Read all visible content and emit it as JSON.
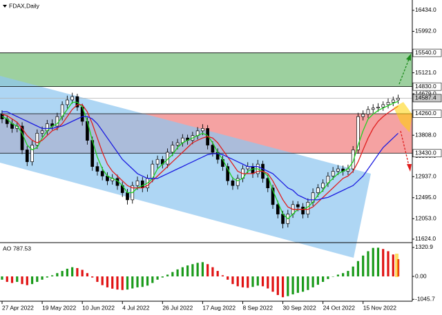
{
  "chart_data": [
    {
      "type": "candlestick",
      "title": "FDAX,Daily",
      "categories": [
        "27 Apr 2022",
        null,
        null,
        null,
        null,
        null,
        null,
        null,
        "19 May 2022",
        null,
        null,
        null,
        null,
        null,
        null,
        null,
        "10 Jun 2022",
        null,
        null,
        null,
        null,
        null,
        null,
        null,
        "4 Jul 2022",
        null,
        null,
        null,
        null,
        null,
        null,
        null,
        "26 Jul 2022",
        null,
        null,
        null,
        null,
        null,
        null,
        null,
        "17 Aug 2022",
        null,
        null,
        null,
        null,
        null,
        null,
        null,
        "8 Sep 2022",
        null,
        null,
        null,
        null,
        null,
        null,
        null,
        "30 Sep 2022",
        null,
        null,
        null,
        null,
        null,
        null,
        null,
        "24 Oct 2022",
        null,
        null,
        null,
        null,
        null,
        null,
        null,
        "15 Nov 2022",
        null,
        null,
        null,
        null,
        null,
        null,
        null
      ],
      "open": [
        14250,
        14150,
        14050,
        13950,
        14000,
        13500,
        13250,
        13600,
        13850,
        13900,
        14050,
        14000,
        14200,
        14450,
        14550,
        14620,
        14400,
        14100,
        13700,
        13150,
        13050,
        12950,
        12850,
        12900,
        12750,
        12600,
        12450,
        12750,
        12850,
        12700,
        12900,
        13200,
        13300,
        13200,
        13450,
        13600,
        13650,
        13750,
        13700,
        13800,
        13900,
        13950,
        13600,
        13450,
        13300,
        13150,
        12850,
        12750,
        12900,
        13100,
        13150,
        13000,
        13200,
        12900,
        12700,
        12350,
        12150,
        11950,
        12150,
        12350,
        12300,
        12150,
        12400,
        12600,
        12700,
        12800,
        12950,
        13050,
        13100,
        13050,
        13100,
        13500,
        14200,
        14250,
        14350,
        14380,
        14400,
        14450,
        14500,
        14550
      ],
      "high": [
        14330,
        14230,
        14140,
        14090,
        14080,
        13580,
        13690,
        13930,
        13990,
        14130,
        14140,
        14280,
        14520,
        14640,
        14700,
        14680,
        14470,
        14180,
        13780,
        13240,
        13140,
        13030,
        12990,
        12980,
        12830,
        12680,
        12830,
        12940,
        12930,
        12980,
        13280,
        13380,
        13370,
        13530,
        13680,
        13730,
        13830,
        13820,
        13880,
        13980,
        14040,
        14020,
        13680,
        13530,
        13380,
        13220,
        12930,
        12980,
        13180,
        13240,
        13220,
        13290,
        13270,
        12980,
        12770,
        12430,
        12220,
        12240,
        12430,
        12420,
        12380,
        12480,
        12690,
        12780,
        12880,
        13030,
        13140,
        13180,
        13170,
        13190,
        13580,
        14280,
        14330,
        14420,
        14460,
        14480,
        14520,
        14580,
        14620,
        14660
      ],
      "low": [
        14060,
        13970,
        13860,
        13870,
        13410,
        13160,
        13170,
        13520,
        13770,
        13820,
        13920,
        13910,
        14120,
        14370,
        14470,
        14320,
        14010,
        13610,
        13060,
        12960,
        12860,
        12760,
        12770,
        12660,
        12510,
        12350,
        12370,
        12660,
        12610,
        12620,
        12820,
        13110,
        13110,
        13120,
        13370,
        13510,
        13570,
        13610,
        13620,
        13720,
        13810,
        13510,
        13360,
        13210,
        13060,
        12760,
        12660,
        12670,
        12820,
        13010,
        12910,
        12920,
        12810,
        12610,
        12260,
        12060,
        11850,
        11870,
        12070,
        12210,
        12060,
        12070,
        12320,
        12510,
        12620,
        12720,
        12870,
        12970,
        12960,
        12970,
        13020,
        13420,
        14120,
        14170,
        14270,
        14300,
        14320,
        14370,
        14420,
        14470
      ],
      "close": [
        14150,
        14050,
        13950,
        14000,
        13500,
        13250,
        13600,
        13850,
        13900,
        14050,
        14000,
        14200,
        14450,
        14550,
        14620,
        14400,
        14100,
        13700,
        13150,
        13050,
        12950,
        12850,
        12900,
        12750,
        12600,
        12450,
        12750,
        12850,
        12700,
        12900,
        13200,
        13300,
        13200,
        13450,
        13600,
        13650,
        13750,
        13700,
        13800,
        13900,
        13950,
        13600,
        13450,
        13300,
        13150,
        12850,
        12750,
        12900,
        13100,
        13150,
        13000,
        13200,
        12900,
        12700,
        12350,
        12150,
        11950,
        12150,
        12350,
        12300,
        12150,
        12400,
        12600,
        12700,
        12800,
        12950,
        13050,
        13100,
        13050,
        13100,
        13500,
        14200,
        14250,
        14350,
        14380,
        14400,
        14450,
        14500,
        14550,
        14587.4
      ],
      "up_color": "#ffffff",
      "down_color": "#000000",
      "series": [
        {
          "color": "#1fd11f",
          "values": [
            14200,
            14150,
            14050,
            14000,
            13850,
            13600,
            13500,
            13550,
            13750,
            13900,
            14000,
            14050,
            14200,
            14350,
            14500,
            14500,
            14400,
            14100,
            13700,
            13350,
            13100,
            12950,
            12900,
            12850,
            12750,
            12600,
            12600,
            12700,
            12750,
            12800,
            12900,
            13100,
            13200,
            13300,
            13400,
            13550,
            13650,
            13700,
            13750,
            13800,
            13850,
            13800,
            13650,
            13450,
            13300,
            13100,
            12900,
            12850,
            12900,
            13050,
            13100,
            13100,
            13050,
            12950,
            12650,
            12400,
            12150,
            12050,
            12150,
            12250,
            12250,
            12300,
            12400,
            12550,
            12650,
            12800,
            12900,
            13000,
            13050,
            13100,
            13250,
            13600,
            13900,
            14150,
            14250,
            14330,
            14380,
            14430,
            14480,
            14520
          ]
        },
        {
          "color": "#e01e1e",
          "values": [
            14250,
            14220,
            14150,
            14080,
            13950,
            13800,
            13700,
            13650,
            13700,
            13800,
            13900,
            13950,
            14050,
            14200,
            14350,
            14450,
            14450,
            14300,
            14050,
            13750,
            13450,
            13200,
            13050,
            12950,
            12850,
            12750,
            12700,
            12700,
            12700,
            12750,
            12850,
            12950,
            13050,
            13150,
            13250,
            13350,
            13450,
            13550,
            13650,
            13700,
            13750,
            13780,
            13750,
            13650,
            13500,
            13350,
            13200,
            13050,
            13000,
            13000,
            13000,
            13050,
            13050,
            13000,
            12850,
            12650,
            12450,
            12300,
            12250,
            12250,
            12250,
            12250,
            12300,
            12400,
            12500,
            12600,
            12700,
            12800,
            12900,
            12950,
            13050,
            13250,
            13500,
            13750,
            13950,
            14100,
            14200,
            14280,
            14350,
            14420
          ]
        },
        {
          "color": "#1c1ce0",
          "values": [
            14300,
            14300,
            14250,
            14200,
            14150,
            14100,
            14050,
            14000,
            13950,
            13950,
            13950,
            13980,
            14000,
            14050,
            14100,
            14150,
            14200,
            14200,
            14150,
            14050,
            13900,
            13750,
            13600,
            13450,
            13300,
            13200,
            13100,
            13000,
            12950,
            12900,
            12900,
            12900,
            12950,
            13000,
            13050,
            13100,
            13150,
            13200,
            13250,
            13300,
            13350,
            13400,
            13420,
            13420,
            13400,
            13350,
            13300,
            13250,
            13200,
            13150,
            13150,
            13150,
            13100,
            13050,
            13000,
            12900,
            12800,
            12700,
            12650,
            12550,
            12500,
            12450,
            12450,
            12450,
            12480,
            12500,
            12550,
            12600,
            12650,
            12700,
            12750,
            12850,
            12950,
            13100,
            13250,
            13400,
            13550,
            13650,
            13750,
            13850
          ]
        }
      ],
      "zones": [
        {
          "top": {
            "value": 15540,
            "label": "15540.0"
          },
          "bottom": {
            "value": 14830,
            "label": "14830.0"
          },
          "color": "#9dd09f"
        },
        {
          "top": {
            "value": 14260,
            "label": "14260.0"
          },
          "bottom": {
            "value": 13430,
            "label": "13430.0"
          },
          "color": "#f5a2a2"
        }
      ],
      "ylim": [
        11550,
        16651
      ],
      "yticks": [
        {
          "value": 16434,
          "label": "16434.0"
        },
        {
          "value": 15992,
          "label": "15992.0"
        },
        {
          "value": 15121,
          "label": "15121.0"
        },
        {
          "value": 14679,
          "label": "14679.0"
        },
        {
          "value": 13808,
          "label": "13808.0"
        },
        {
          "value": 13366,
          "label": "13366.0"
        },
        {
          "value": 12937,
          "label": "12937.0"
        },
        {
          "value": 12495,
          "label": "12495.0"
        },
        {
          "value": 12053,
          "label": "12053.0"
        },
        {
          "value": 11624,
          "label": "11624.0"
        }
      ]
    },
    {
      "type": "bar",
      "name": "AO",
      "values": [
        -150,
        -250,
        -300,
        -250,
        -350,
        -400,
        -350,
        -250,
        -150,
        -50,
        50,
        150,
        250,
        350,
        420,
        380,
        300,
        150,
        -50,
        -250,
        -400,
        -500,
        -560,
        -600,
        -620,
        -600,
        -550,
        -500,
        -480,
        -420,
        -300,
        -150,
        -50,
        80,
        200,
        320,
        420,
        500,
        560,
        620,
        650,
        560,
        420,
        250,
        50,
        -150,
        -350,
        -450,
        -500,
        -520,
        -480,
        -420,
        -450,
        -550,
        -700,
        -850,
        -950,
        -900,
        -820,
        -750,
        -700,
        -620,
        -500,
        -380,
        -250,
        -120,
        0,
        80,
        150,
        250,
        450,
        700,
        950,
        1150,
        1300,
        1310,
        1250,
        1150,
        1000,
        787.53
      ],
      "up_color": "#1a9a1a",
      "down_color": "#e01212",
      "ylim": [
        -1132,
        1541
      ],
      "yticks": [
        1320.9,
        {
          "value": 0,
          "label": "0.00"
        },
        -1045.7
      ]
    }
  ]
}
